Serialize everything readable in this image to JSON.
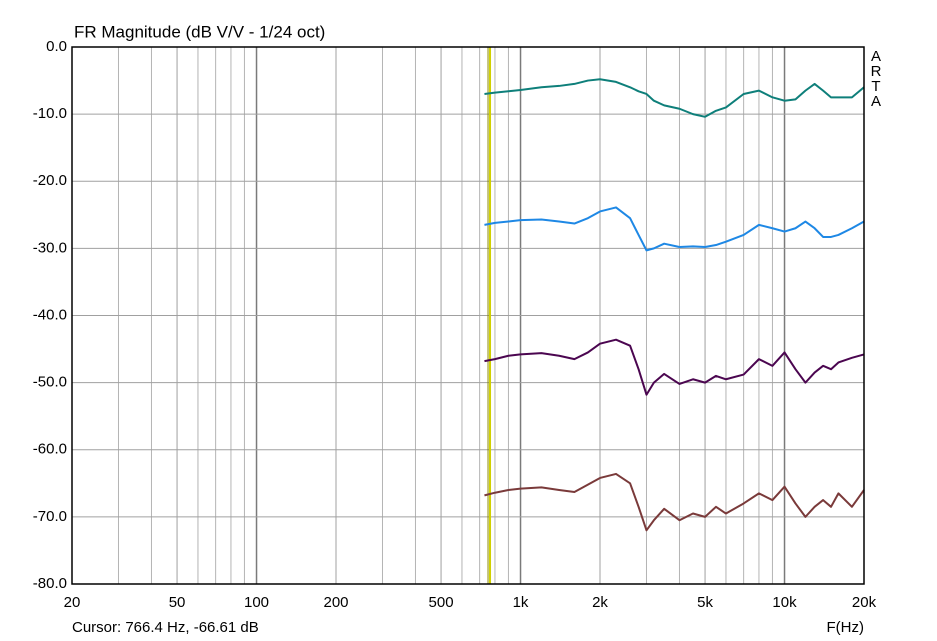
{
  "chart_data": {
    "type": "line",
    "title": "FR Magnitude (dB V/V - 1/24 oct)",
    "x_label": "F(Hz)",
    "brand": "ARTA",
    "cursor_label": "Cursor: 766.4 Hz, -66.61 dB",
    "cursor_x": 766.4,
    "cursor_color": "#d0d000",
    "xscale": "log",
    "xlim": [
      20,
      20000
    ],
    "xticks": [
      20,
      50,
      100,
      200,
      500,
      {
        "value": 1000,
        "label": "1k"
      },
      {
        "value": 2000,
        "label": "2k"
      },
      {
        "value": 5000,
        "label": "5k"
      },
      {
        "value": 10000,
        "label": "10k"
      },
      {
        "value": 20000,
        "label": "20k"
      }
    ],
    "xminor_grid": [
      30,
      40,
      60,
      70,
      80,
      90,
      300,
      400,
      600,
      700,
      800,
      900,
      3000,
      4000,
      6000,
      7000,
      8000,
      9000
    ],
    "ylim": [
      -80,
      0
    ],
    "yticks": [
      {
        "value": 0,
        "label": "0.0"
      },
      {
        "value": -10,
        "label": "-10.0"
      },
      {
        "value": -20,
        "label": "-20.0"
      },
      {
        "value": -30,
        "label": "-30.0"
      },
      {
        "value": -40,
        "label": "-40.0"
      },
      {
        "value": -50,
        "label": "-50.0"
      },
      {
        "value": -60,
        "label": "-60.0"
      },
      {
        "value": -70,
        "label": "-70.0"
      },
      {
        "value": -80,
        "label": "-80.0"
      }
    ],
    "grid": true,
    "x": [
      730,
      800,
      900,
      1000,
      1200,
      1400,
      1600,
      1800,
      2000,
      2300,
      2600,
      2800,
      3000,
      3200,
      3500,
      4000,
      4500,
      5000,
      5500,
      6000,
      7000,
      8000,
      9000,
      10000,
      11000,
      12000,
      13000,
      14000,
      15000,
      16000,
      18000,
      20000
    ],
    "series": [
      {
        "color": "#0e7f7a",
        "values": [
          -7,
          -6.8,
          -6.6,
          -6.4,
          -6,
          -5.8,
          -5.5,
          -5,
          -4.8,
          -5.2,
          -6,
          -6.6,
          -7,
          -8,
          -8.7,
          -9.2,
          -10,
          -10.4,
          -9.5,
          -9,
          -7,
          -6.5,
          -7.5,
          -8,
          -7.8,
          -6.5,
          -5.5,
          -6.5,
          -7.5,
          -7.5,
          -7.5,
          -6
        ]
      },
      {
        "color": "#1e88e5",
        "values": [
          -26.5,
          -26.2,
          -26,
          -25.8,
          -25.7,
          -26,
          -26.3,
          -25.5,
          -24.5,
          -23.9,
          -25.5,
          -28,
          -30.3,
          -30,
          -29.3,
          -29.8,
          -29.7,
          -29.8,
          -29.5,
          -29,
          -28,
          -26.5,
          -27,
          -27.5,
          -27,
          -26,
          -27,
          -28.3,
          -28.3,
          -28,
          -27,
          -26
        ]
      },
      {
        "color": "#4b0650",
        "values": [
          -46.8,
          -46.5,
          -46,
          -45.8,
          -45.6,
          -46,
          -46.5,
          -45.5,
          -44.2,
          -43.6,
          -44.5,
          -48,
          -51.8,
          -50,
          -48.7,
          -50.2,
          -49.5,
          -50,
          -49,
          -49.5,
          -48.8,
          -46.5,
          -47.5,
          -45.5,
          -48,
          -50,
          -48.5,
          -47.5,
          -48,
          -47,
          -46.3,
          -45.8
        ]
      },
      {
        "color": "#7a3a3a",
        "values": [
          -66.8,
          -66.4,
          -66,
          -65.8,
          -65.6,
          -66,
          -66.3,
          -65.2,
          -64.2,
          -63.6,
          -65,
          -68.5,
          -72,
          -70.5,
          -68.8,
          -70.5,
          -69.5,
          -70,
          -68.5,
          -69.5,
          -68,
          -66.5,
          -67.5,
          -65.5,
          -68,
          -70,
          -68.5,
          -67.5,
          -68.5,
          -66.5,
          -68.5,
          -66
        ]
      }
    ]
  }
}
